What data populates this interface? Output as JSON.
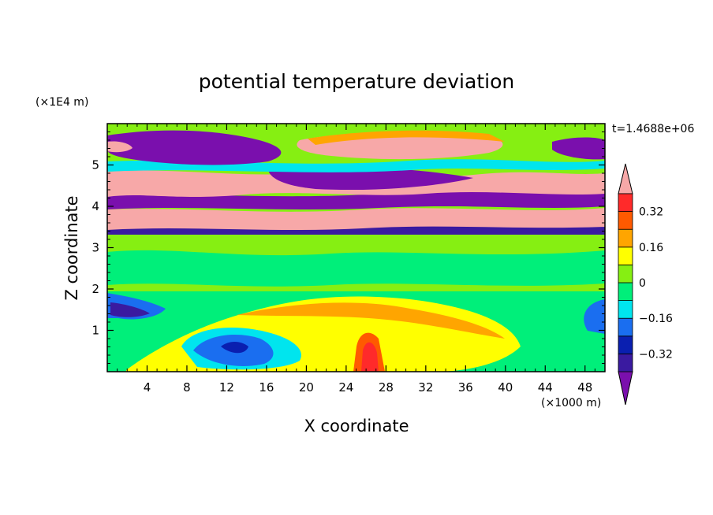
{
  "chart_data": {
    "type": "heatmap",
    "title": "potential temperature deviation",
    "xlabel": "X coordinate",
    "ylabel": "Z coordinate",
    "x_unit": "(×1000 m)",
    "y_unit": "(×1E4 m)",
    "time_label": "t=1.4688e+06",
    "xlim": [
      0,
      50
    ],
    "ylim": [
      0,
      6
    ],
    "x_ticks": [
      "4",
      "8",
      "12",
      "16",
      "20",
      "24",
      "28",
      "32",
      "36",
      "40",
      "44",
      "48"
    ],
    "y_ticks": [
      "1",
      "2",
      "3",
      "4",
      "5"
    ],
    "colorbar": {
      "labels": [
        "0.32",
        "0.16",
        "0",
        "−0.16",
        "−0.32"
      ],
      "levels": [
        -0.4,
        -0.32,
        -0.24,
        -0.16,
        -0.08,
        0,
        0.08,
        0.16,
        0.24,
        0.32,
        0.4
      ],
      "colors": [
        "#7a0fad",
        "#3a1aa0",
        "#0a1fb0",
        "#1a6ef0",
        "#00e5ee",
        "#00ef7a",
        "#86ef12",
        "#ffff00",
        "#ffa500",
        "#ff5a00",
        "#ff2a2a",
        "#f7a8a8"
      ]
    },
    "fields": {
      "lower_band": "z 0–2: near-zero background with warm plume centred near x≈26, cold pool near x≈8–18",
      "middle_band": "z 2–3.3: near-zero values",
      "upper_band": "z 3.3–6: alternating layers of strong positive (>0.4) and strong negative (<−0.4) anomalies"
    }
  }
}
